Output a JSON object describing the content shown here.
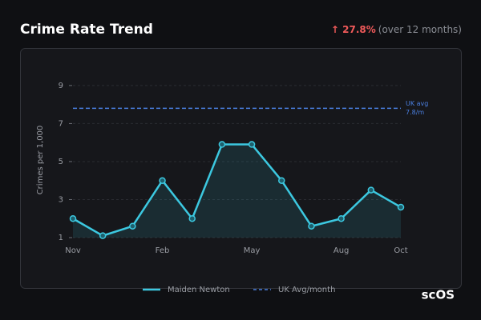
{
  "chart_data": {
    "type": "line",
    "title": "Crime Rate Trend",
    "change_label": "↑ 27.8%",
    "change_note": "(over 12 months)",
    "ylabel": "Crimes per 1,000",
    "categories": [
      "Nov",
      null,
      null,
      "Feb",
      null,
      null,
      "May",
      null,
      null,
      "Aug",
      null,
      "Oct"
    ],
    "series": [
      {
        "name": "Maiden Newton",
        "color": "#3cc8e0",
        "values": [
          2.0,
          1.1,
          1.6,
          4.0,
          2.0,
          5.9,
          5.9,
          4.0,
          1.6,
          2.0,
          3.5,
          2.6
        ]
      }
    ],
    "reference": {
      "name": "UK Avg/month",
      "label": "UK avg",
      "value": 7.8,
      "value_label": "7.8/m",
      "color": "#4a7fe0"
    },
    "ylim": [
      1,
      9.5
    ],
    "yticks": [
      1,
      3,
      5,
      7,
      9
    ],
    "grid": true,
    "logo": "scOS"
  }
}
